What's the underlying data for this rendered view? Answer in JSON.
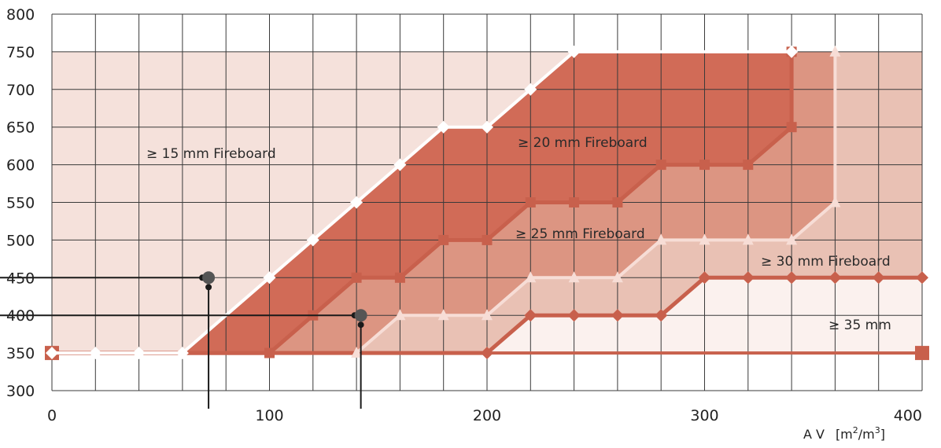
{
  "chart_data": {
    "type": "area",
    "xlim": [
      0,
      400
    ],
    "ylim": [
      300,
      800
    ],
    "x_ticks": [
      0,
      100,
      200,
      300,
      400
    ],
    "y_ticks": [
      300,
      350,
      400,
      450,
      500,
      550,
      600,
      650,
      700,
      750,
      800
    ],
    "grid": true,
    "x_unit_label": {
      "prefix": "A V",
      "open": "[m",
      "sup1": "2",
      "mid": "/m",
      "sup2": "3",
      "close": "]"
    },
    "colors": {
      "grid": "#3a3a3a",
      "zone_15": "#f5e1db",
      "zone_20": "#d16b57",
      "zone_25": "#dc9582",
      "zone_30": "#e9c1b4",
      "zone_35": "#fbf1ee",
      "line_white": "#ffffff",
      "line_pale": "#f7ddd6",
      "line_red": "#c8604c",
      "marker_grey": "#555555",
      "guide": "#1a1a1a"
    },
    "series": [
      {
        "id": "b20",
        "marker": "diamond",
        "x": [
          0,
          20,
          40,
          60,
          100,
          120,
          140,
          160,
          180,
          200,
          220,
          240,
          340
        ],
        "y": [
          350,
          350,
          350,
          350,
          450,
          500,
          550,
          600,
          650,
          650,
          700,
          750,
          750
        ]
      },
      {
        "id": "b25",
        "marker": "square",
        "x": [
          0,
          100,
          120,
          140,
          160,
          180,
          200,
          220,
          240,
          260,
          280,
          300,
          320,
          340,
          340
        ],
        "y": [
          350,
          350,
          400,
          450,
          450,
          500,
          500,
          550,
          550,
          550,
          600,
          600,
          600,
          650,
          750
        ]
      },
      {
        "id": "b30",
        "marker": "triangle",
        "x": [
          140,
          160,
          180,
          200,
          220,
          240,
          260,
          280,
          300,
          320,
          340,
          360,
          360
        ],
        "y": [
          350,
          400,
          400,
          400,
          450,
          450,
          450,
          500,
          500,
          500,
          500,
          550,
          750
        ]
      },
      {
        "id": "b35",
        "marker": "diamond",
        "x": [
          0,
          200,
          220,
          240,
          260,
          280,
          300,
          320,
          340,
          360,
          380,
          400
        ],
        "y": [
          350,
          350,
          400,
          400,
          400,
          400,
          450,
          450,
          450,
          450,
          450,
          450
        ]
      },
      {
        "id": "base",
        "marker": "square",
        "x": [
          0,
          400
        ],
        "y": [
          350,
          350
        ]
      }
    ],
    "annotations": [
      {
        "id": "fb15",
        "text": "≥ 15 mm Fireboard"
      },
      {
        "id": "fb20",
        "text": "≥  20 mm Fireboard"
      },
      {
        "id": "fb25",
        "text": "≥  25 mm Fireboard"
      },
      {
        "id": "fb30",
        "text": "≥ 30 mm   Fireboard"
      },
      {
        "id": "fb35",
        "text": "≥ 35 mm"
      }
    ],
    "example_points": [
      {
        "x": 72,
        "y": 450
      },
      {
        "x": 142,
        "y": 400
      }
    ]
  }
}
